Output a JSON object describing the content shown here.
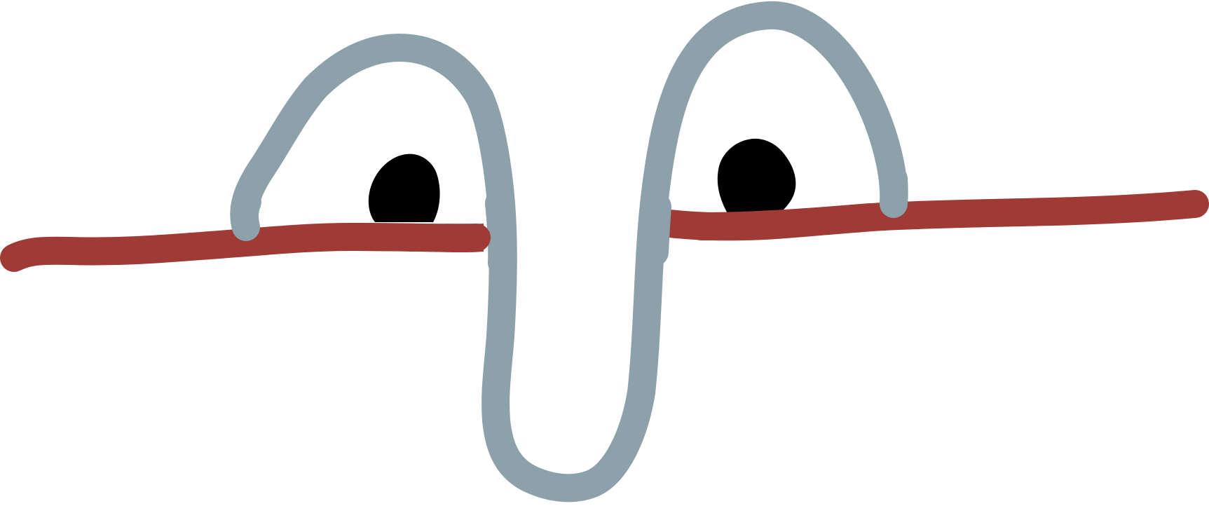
{
  "diagram": {
    "type": "knot-diagram",
    "strands": [
      {
        "id": "gray-strand",
        "color": "#8ca1aa"
      },
      {
        "id": "red-strand",
        "color": "#9f3a35"
      }
    ],
    "blobs": [
      {
        "id": "left-blob",
        "color": "#000000"
      },
      {
        "id": "right-blob",
        "color": "#000000"
      }
    ]
  }
}
